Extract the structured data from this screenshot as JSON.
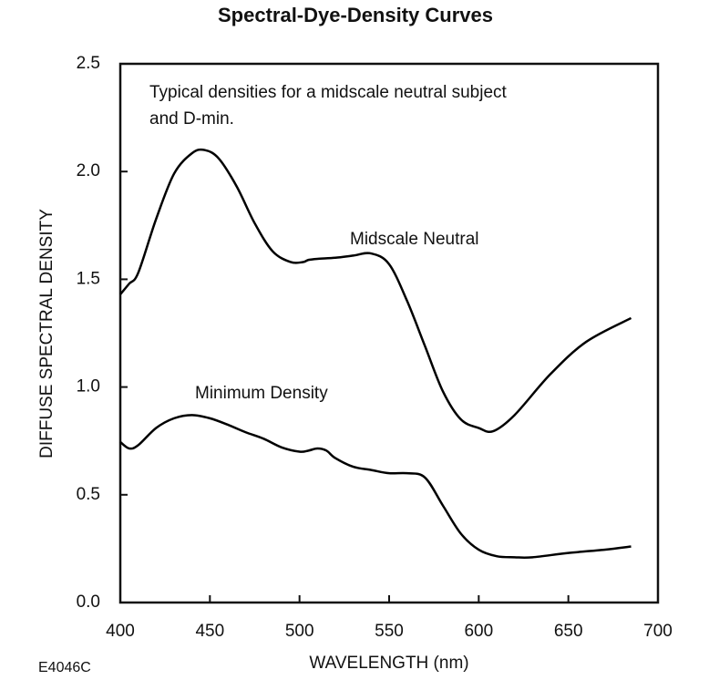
{
  "chart_data": {
    "type": "line",
    "title": "Spectral-Dye-Density Curves",
    "annotation": [
      "Typical densities for a midscale neutral subject",
      "and D-min."
    ],
    "figure_code": "E4046C",
    "x_label": "WAVELENGTH (nm)",
    "y_label": "DIFFUSE SPECTRAL DENSITY",
    "xlim": [
      400,
      700
    ],
    "xticks": [
      400,
      450,
      500,
      550,
      600,
      650,
      700
    ],
    "ylim": [
      0,
      2.5
    ],
    "yticks": [
      {
        "value": 0,
        "label": "0.0"
      },
      0.5,
      {
        "value": 1,
        "label": "1.0"
      },
      1.5,
      {
        "value": 2,
        "label": "2.0"
      },
      2.5
    ],
    "series": [
      {
        "name": "Midscale Neutral",
        "color": "#000000",
        "x": [
          400,
          405,
          410,
          420,
          430,
          440,
          447,
          455,
          465,
          475,
          485,
          495,
          502,
          505,
          510,
          520,
          530,
          540,
          550,
          560,
          570,
          580,
          590,
          600,
          608,
          620,
          640,
          660,
          685
        ],
        "values": [
          1.43,
          1.48,
          1.53,
          1.78,
          1.99,
          2.085,
          2.1,
          2.06,
          1.93,
          1.76,
          1.63,
          1.58,
          1.58,
          1.59,
          1.595,
          1.6,
          1.61,
          1.62,
          1.57,
          1.4,
          1.19,
          0.98,
          0.85,
          0.81,
          0.795,
          0.87,
          1.06,
          1.21,
          1.32
        ]
      },
      {
        "name": "Minimum Density",
        "color": "#000000",
        "x": [
          400,
          405,
          410,
          420,
          430,
          440,
          450,
          460,
          470,
          480,
          490,
          500,
          505,
          510,
          515,
          520,
          530,
          540,
          550,
          560,
          570,
          580,
          590,
          600,
          610,
          620,
          630,
          650,
          670,
          685
        ],
        "values": [
          0.745,
          0.715,
          0.73,
          0.81,
          0.855,
          0.87,
          0.855,
          0.825,
          0.79,
          0.76,
          0.72,
          0.7,
          0.705,
          0.715,
          0.705,
          0.67,
          0.63,
          0.615,
          0.6,
          0.6,
          0.58,
          0.45,
          0.32,
          0.245,
          0.215,
          0.21,
          0.21,
          0.23,
          0.245,
          0.26
        ]
      }
    ]
  }
}
